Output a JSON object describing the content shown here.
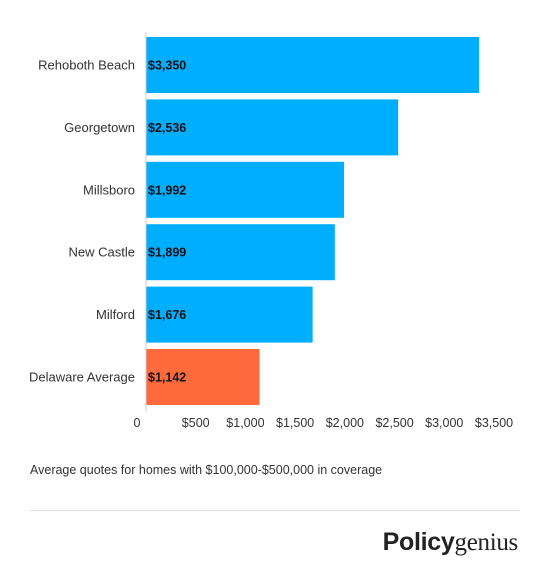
{
  "chart_data": {
    "type": "bar",
    "orientation": "horizontal",
    "categories": [
      "Rehoboth Beach",
      "Georgetown",
      "Millsboro",
      "New Castle",
      "Milford",
      "Delaware Average"
    ],
    "values": [
      3350,
      2536,
      1992,
      1899,
      1676,
      1142
    ],
    "value_labels": [
      "$3,350",
      "$2,536",
      "$1,992",
      "$1,899",
      "$1,676",
      "$1,142"
    ],
    "bar_colors": [
      "#00aeff",
      "#00aeff",
      "#00aeff",
      "#00aeff",
      "#00aeff",
      "#ff6a3d"
    ],
    "x_ticks": [
      0,
      500,
      1000,
      1500,
      2000,
      2500,
      3000,
      3500
    ],
    "x_tick_labels": [
      "0",
      "$500",
      "$1,000",
      "$1,500",
      "$2,000",
      "$2,500",
      "$3,000",
      "$3,500"
    ],
    "xlim": [
      0,
      3500
    ],
    "grid": false,
    "legend": "none"
  },
  "footnote": "Average quotes for homes with $100,000-$500,000 in coverage",
  "brand": {
    "part1": "Policy",
    "part2": "genius"
  }
}
